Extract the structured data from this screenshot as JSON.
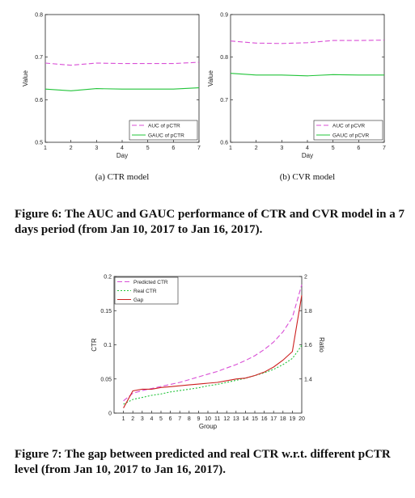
{
  "figure6": {
    "caption": "Figure 6: The AUC and GAUC performance of CTR and CVR model in a 7 days period (from Jan 10, 2017 to Jan 16, 2017)."
  },
  "figure7": {
    "caption": "Figure 7: The gap between predicted and real CTR w.r.t. different pCTR level (from Jan 10, 2017 to Jan 16, 2017)."
  },
  "chart_data": [
    {
      "id": "ctr",
      "type": "line",
      "subcaption": "(a) CTR model",
      "xlabel": "Day",
      "ylabel": "Value",
      "x": [
        1,
        2,
        3,
        4,
        5,
        6,
        7
      ],
      "xticks": [
        "1",
        "2",
        "3",
        "4",
        "5",
        "6",
        "7"
      ],
      "xlim": [
        1,
        7
      ],
      "ylim": [
        0.5,
        0.8
      ],
      "yticks": [
        "0.5",
        "0.6",
        "0.7",
        "0.8"
      ],
      "legend_position": "bottom-right",
      "series": [
        {
          "name": "AUC of pCTR",
          "values": [
            0.686,
            0.681,
            0.686,
            0.685,
            0.685,
            0.685,
            0.688
          ],
          "color": "#d94fd6",
          "dash": "6,3"
        },
        {
          "name": "GAUC of pCTR",
          "values": [
            0.625,
            0.621,
            0.626,
            0.625,
            0.625,
            0.625,
            0.628
          ],
          "color": "#22c43a",
          "dash": ""
        }
      ]
    },
    {
      "id": "cvr",
      "type": "line",
      "subcaption": "(b) CVR model",
      "xlabel": "Day",
      "ylabel": "Value",
      "x": [
        1,
        2,
        3,
        4,
        5,
        6,
        7
      ],
      "xticks": [
        "1",
        "2",
        "3",
        "4",
        "5",
        "6",
        "7"
      ],
      "xlim": [
        1,
        7
      ],
      "ylim": [
        0.6,
        0.9
      ],
      "yticks": [
        "0.6",
        "0.7",
        "0.8",
        "0.9"
      ],
      "legend_position": "bottom-right",
      "series": [
        {
          "name": "AUC of pCVR",
          "values": [
            0.838,
            0.833,
            0.832,
            0.834,
            0.839,
            0.839,
            0.84
          ],
          "color": "#d94fd6",
          "dash": "6,3"
        },
        {
          "name": "GAUC of pCVR",
          "values": [
            0.762,
            0.758,
            0.758,
            0.756,
            0.759,
            0.758,
            0.758
          ],
          "color": "#22c43a",
          "dash": ""
        }
      ]
    },
    {
      "id": "gap",
      "type": "line",
      "xlabel": "Group",
      "ylabel": "CTR",
      "ylabel_right": "Ratio",
      "x": [
        1,
        2,
        3,
        4,
        5,
        6,
        7,
        8,
        9,
        10,
        11,
        12,
        13,
        14,
        15,
        16,
        17,
        18,
        19,
        20
      ],
      "xticks": [
        "1",
        "2",
        "3",
        "4",
        "5",
        "6",
        "7",
        "8",
        "9",
        "10",
        "11",
        "12",
        "13",
        "14",
        "15",
        "16",
        "17",
        "18",
        "19",
        "20"
      ],
      "xlim": [
        0,
        20
      ],
      "ylim": [
        0,
        0.2
      ],
      "yticks": [
        "0",
        "0.05",
        "0.1",
        "0.15",
        "0.2"
      ],
      "ylim_right": [
        1.2,
        2
      ],
      "yticks_right": [
        "1.4",
        "1.6",
        "1.8",
        "2"
      ],
      "legend_position": "top-left",
      "series": [
        {
          "name": "Predicted CTR",
          "axis": "left",
          "values": [
            0.018,
            0.029,
            0.033,
            0.036,
            0.039,
            0.042,
            0.045,
            0.049,
            0.053,
            0.057,
            0.061,
            0.066,
            0.071,
            0.077,
            0.084,
            0.093,
            0.104,
            0.119,
            0.14,
            0.188
          ],
          "color": "#d94fd6",
          "dash": "6,3"
        },
        {
          "name": "Real CTR",
          "axis": "left",
          "values": [
            0.013,
            0.02,
            0.023,
            0.026,
            0.028,
            0.031,
            0.033,
            0.035,
            0.037,
            0.04,
            0.042,
            0.045,
            0.048,
            0.051,
            0.055,
            0.059,
            0.064,
            0.071,
            0.08,
            0.099
          ],
          "color": "#22c43a",
          "dash": "2,2"
        },
        {
          "name": "Gap",
          "axis": "right",
          "values": [
            1.23,
            1.33,
            1.34,
            1.34,
            1.35,
            1.355,
            1.36,
            1.365,
            1.37,
            1.375,
            1.38,
            1.39,
            1.4,
            1.405,
            1.42,
            1.44,
            1.47,
            1.51,
            1.56,
            1.89
          ],
          "color": "#cc1f1f",
          "dash": ""
        }
      ]
    }
  ]
}
